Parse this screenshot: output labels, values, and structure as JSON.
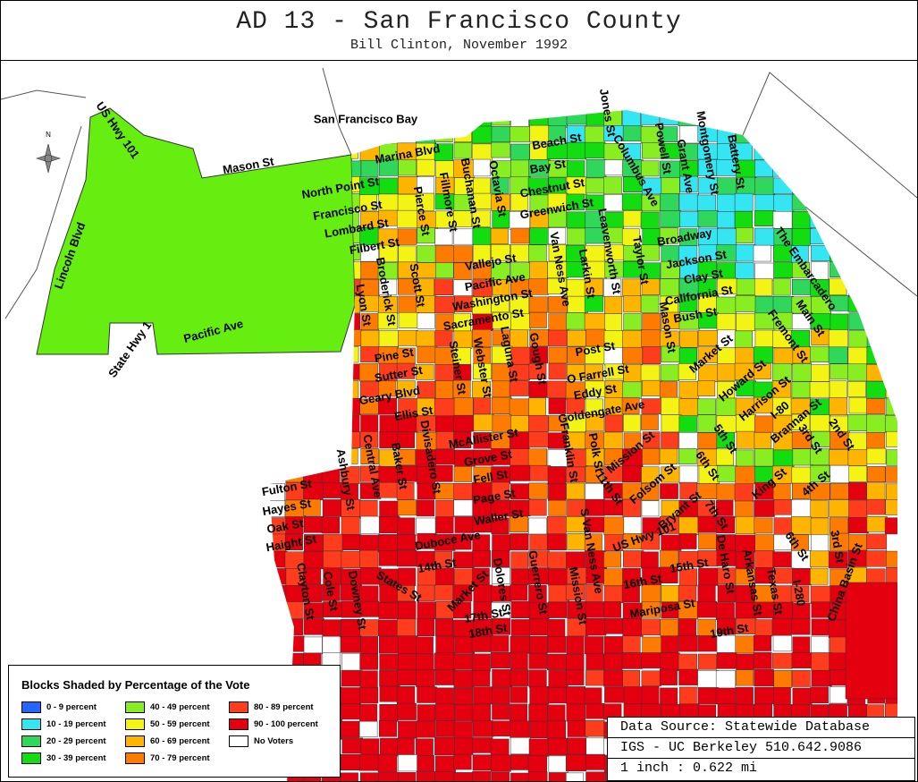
{
  "header": {
    "title": "AD 13 - San Francisco County",
    "subtitle": "Bill Clinton, November 1992"
  },
  "map": {
    "compass": "N",
    "labels": [
      "San Francisco Bay",
      "Marina Blvd",
      "Mason St",
      "US Hwy 101",
      "Lincoln Blvd",
      "North Point St",
      "Francisco St",
      "Lombard St",
      "Filbert St",
      "Pacific Ave",
      "State Hwy 1",
      "Lyon St",
      "Broderick St",
      "Scott St",
      "Pierce St",
      "Fillmore St",
      "Buchanan St",
      "Octavia St",
      "Beach St",
      "Bay St",
      "Chestnut St",
      "Greenwich St",
      "Jones St",
      "Columbus Ave",
      "Powell St",
      "Grant Ave",
      "Montgomery St",
      "Battery St",
      "The Embarcadero",
      "Vallejo St",
      "Pacific Ave",
      "Washington St",
      "Sacramento St",
      "Broadway",
      "Jackson St",
      "Clay St",
      "California St",
      "Bush St",
      "Van Ness Ave",
      "Larkin St",
      "Leavenworth St",
      "Taylor St",
      "Mason St",
      "Pine St",
      "Sutter St",
      "Geary Blvd",
      "Ellis St",
      "Steiner St",
      "Webster St",
      "Laguna St",
      "Gough St",
      "Post St",
      "O Farrell St",
      "Eddy St",
      "Goldengate Ave",
      "McAllister St",
      "Grove St",
      "Fell St",
      "Page St",
      "Waller St",
      "Duboce Ave",
      "Main St",
      "Fremont St",
      "Market St",
      "Howard St",
      "Harrison St",
      "Brannan St",
      "I-80",
      "2nd St",
      "3rd St",
      "4th St",
      "King St",
      "5th St",
      "6th St",
      "7th St",
      "Mission St",
      "Folsom St",
      "Bryant St",
      "11th St",
      "Polk St",
      "Franklin St",
      "Divisadero St",
      "Baker St",
      "Central Ave",
      "Ashbury St",
      "Fulton St",
      "Hayes St",
      "Oak St",
      "Haight St",
      "Clayton St",
      "Cole St",
      "Downey St",
      "States St",
      "14th St",
      "Market St",
      "17th St",
      "18th St",
      "Dolores St",
      "Guerrero St",
      "S Van Ness Ave",
      "Mission St",
      "US Hwy 101",
      "15th St",
      "16th St",
      "Mariposa St",
      "De Haro St",
      "Arkansas St",
      "Texas St",
      "I-280",
      "19th St",
      "6th St",
      "3rd St",
      "China Basin St"
    ]
  },
  "legend": {
    "title": "Blocks Shaded by Percentage of the Vote",
    "items": [
      {
        "label": "0 - 9 percent",
        "color": "#2266ff"
      },
      {
        "label": "10 - 19 percent",
        "color": "#33e6f2"
      },
      {
        "label": "20 - 29 percent",
        "color": "#2fd85a"
      },
      {
        "label": "30 - 39 percent",
        "color": "#11dd11"
      },
      {
        "label": "40 - 49 percent",
        "color": "#88ee22"
      },
      {
        "label": "50 - 59 percent",
        "color": "#f4f414"
      },
      {
        "label": "60 - 69 percent",
        "color": "#ffb400"
      },
      {
        "label": "70 - 79 percent",
        "color": "#ff7b00"
      },
      {
        "label": "80 - 89 percent",
        "color": "#ff3c1c"
      },
      {
        "label": "90 - 100 percent",
        "color": "#e50010"
      },
      {
        "label": "No Voters",
        "color": "#ffffff"
      }
    ]
  },
  "source": {
    "lines": [
      "Data Source: Statewide Database",
      "IGS - UC Berkeley 510.642.9086",
      "1 inch : 0.622 mi"
    ]
  }
}
